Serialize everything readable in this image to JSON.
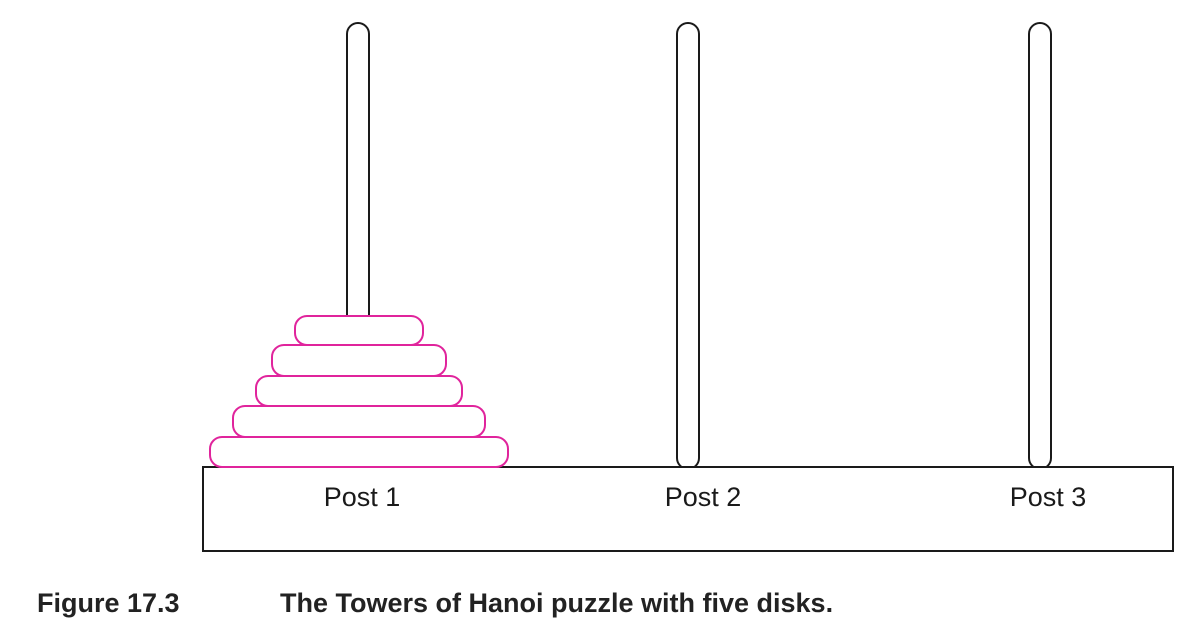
{
  "diagram": {
    "posts": [
      {
        "label": "Post 1",
        "disks": 5
      },
      {
        "label": "Post 2",
        "disks": 0
      },
      {
        "label": "Post 3",
        "disks": 0
      }
    ],
    "colors": {
      "disk_stroke": "#e0249c",
      "line": "#1a1a1a",
      "background": "#ffffff"
    }
  },
  "caption": {
    "figure_number": "Figure 17.3",
    "text": "The Towers of Hanoi puzzle with five disks."
  }
}
